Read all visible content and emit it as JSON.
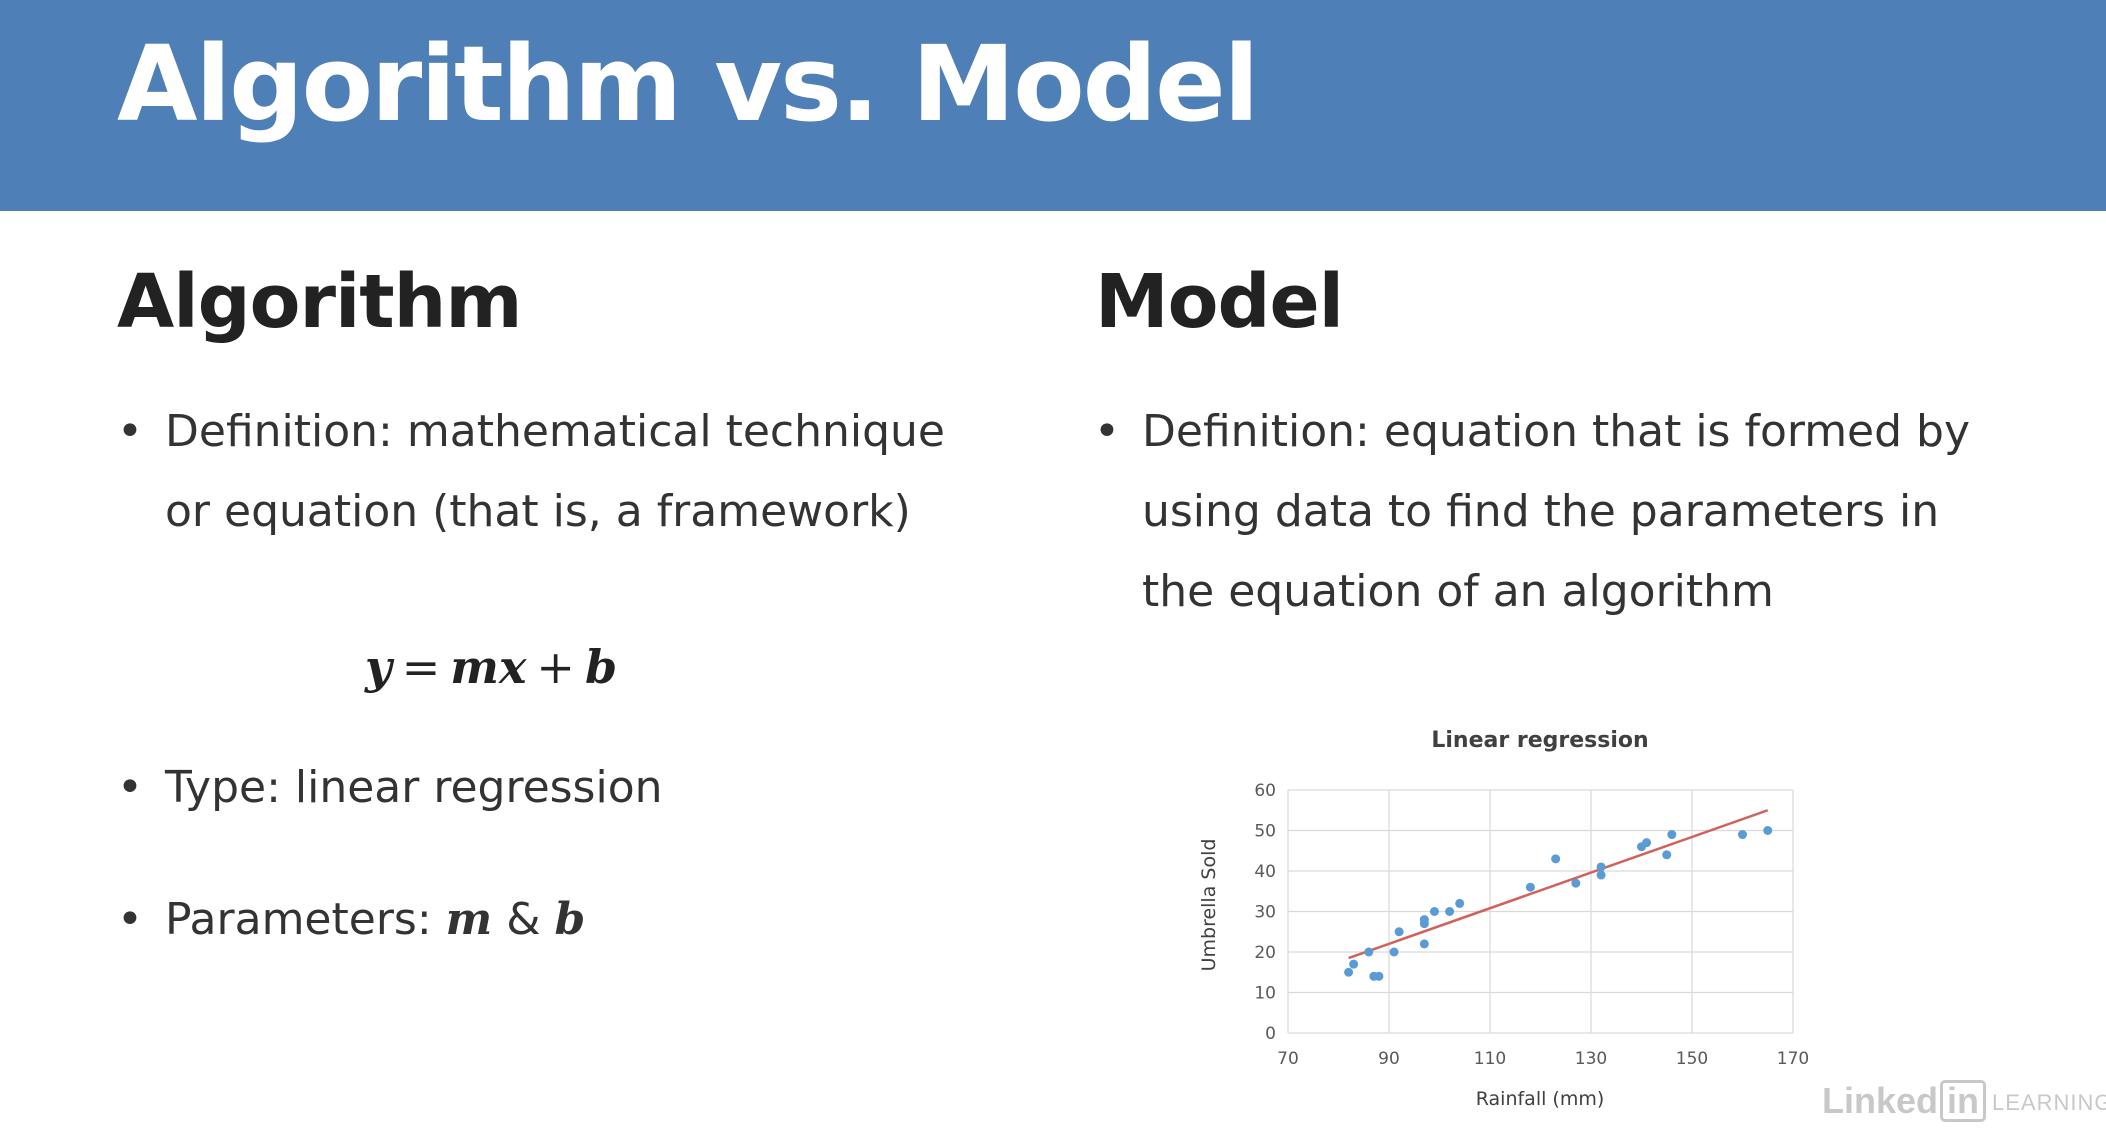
{
  "header": {
    "title": "Algorithm vs. Model"
  },
  "algorithm": {
    "heading": "Algorithm",
    "definition_lines": [
      "Definition: mathematical technique",
      "or equation (that is, a framework)"
    ],
    "equation": {
      "y": "y",
      "eq": "=",
      "mx": "mx",
      "plus": "+",
      "b": "b"
    },
    "type_text": "Type: linear regression",
    "params_prefix": "Parameters: ",
    "param_m": "m",
    "param_amp": " & ",
    "param_b": "b"
  },
  "model": {
    "heading": "Model",
    "definition_lines": [
      "Definition: equation that is formed by",
      "using data to find the parameters in",
      "the equation of an algorithm"
    ]
  },
  "logo": {
    "linked": "Linked",
    "in": "in",
    "learning": "LEARNING"
  },
  "colors": {
    "header": "#4e7fb6",
    "points": "#5b9bd5",
    "trendline": "#d0625a",
    "grid": "#d9d9d9"
  },
  "chart_data": {
    "type": "scatter",
    "title": "Linear regression",
    "xlabel": "Rainfall (mm)",
    "ylabel": "Umbrella Sold",
    "xlim": [
      70,
      170
    ],
    "ylim": [
      0,
      60
    ],
    "xticks": [
      70,
      90,
      110,
      130,
      150,
      170
    ],
    "yticks": [
      0,
      10,
      20,
      30,
      40,
      50,
      60
    ],
    "grid": true,
    "points": [
      [
        82,
        15
      ],
      [
        83,
        17
      ],
      [
        86,
        20
      ],
      [
        87,
        14
      ],
      [
        88,
        14
      ],
      [
        91,
        20
      ],
      [
        92,
        25
      ],
      [
        97,
        22
      ],
      [
        97,
        27
      ],
      [
        97,
        28
      ],
      [
        99,
        30
      ],
      [
        102,
        30
      ],
      [
        104,
        32
      ],
      [
        118,
        36
      ],
      [
        123,
        43
      ],
      [
        127,
        37
      ],
      [
        132,
        39
      ],
      [
        132,
        41
      ],
      [
        140,
        46
      ],
      [
        141,
        47
      ],
      [
        145,
        44
      ],
      [
        146,
        49
      ],
      [
        160,
        49
      ],
      [
        165,
        50
      ]
    ],
    "trendline": {
      "x": [
        82,
        165
      ],
      "y": [
        18.5,
        55
      ]
    }
  }
}
